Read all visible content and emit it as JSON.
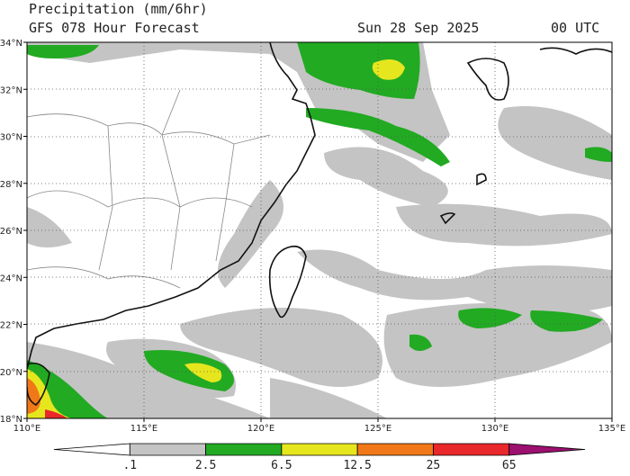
{
  "header": {
    "title": "Precipitation (mm/6hr)",
    "subtitle": "GFS 078 Hour Forecast",
    "date": "Sun 28 Sep 2025",
    "time": "00 UTC"
  },
  "axes": {
    "latitude_labels": [
      "34°N",
      "32°N",
      "30°N",
      "28°N",
      "26°N",
      "24°N",
      "22°N",
      "20°N",
      "18°N"
    ],
    "longitude_labels": [
      "110°E",
      "115°E",
      "120°E",
      "125°E",
      "130°E",
      "135°E"
    ]
  },
  "colorbar": {
    "labels": [
      ".1",
      "2.5",
      "6.5",
      "12.5",
      "25",
      "65"
    ],
    "colors": [
      "#ffffff",
      "#c4c4c4",
      "#22aa22",
      "#e6e61e",
      "#f07818",
      "#e8282a",
      "#9c1070"
    ]
  }
}
